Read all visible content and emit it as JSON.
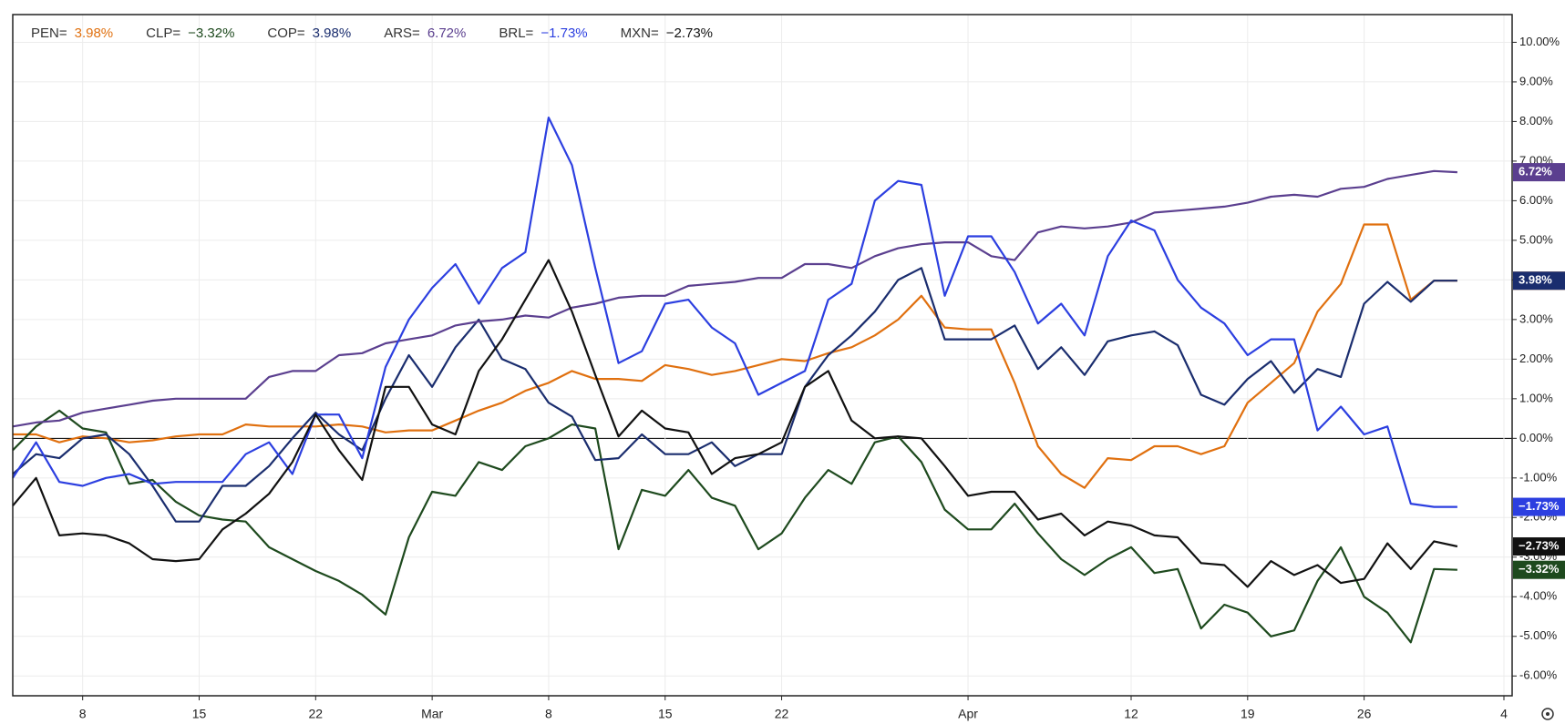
{
  "chart_data": {
    "type": "line",
    "categories": [
      null,
      null,
      null,
      "8",
      null,
      null,
      null,
      null,
      "15",
      null,
      null,
      null,
      null,
      "22",
      null,
      null,
      null,
      null,
      "Mar",
      null,
      null,
      null,
      null,
      "8",
      null,
      null,
      null,
      null,
      "15",
      null,
      null,
      null,
      null,
      "22",
      null,
      null,
      null,
      null,
      null,
      null,
      null,
      "Apr",
      null,
      null,
      null,
      null,
      null,
      null,
      "12",
      null,
      null,
      null,
      null,
      "19",
      null,
      null,
      null,
      null,
      "26",
      null,
      null,
      null,
      null,
      null,
      "4"
    ],
    "ylim": [
      -6.5,
      10.7
    ],
    "yticks": [
      {
        "value": 10,
        "label": "10.00%"
      },
      {
        "value": 9,
        "label": "9.00%"
      },
      {
        "value": 8,
        "label": "8.00%"
      },
      {
        "value": 7,
        "label": "7.00%"
      },
      {
        "value": 6,
        "label": "6.00%"
      },
      {
        "value": 5,
        "label": "5.00%"
      },
      {
        "value": 4,
        "label": "4.00%"
      },
      {
        "value": 3,
        "label": "3.00%"
      },
      {
        "value": 2,
        "label": "2.00%"
      },
      {
        "value": 1,
        "label": "1.00%"
      },
      {
        "value": 0,
        "label": "0.00%"
      },
      {
        "value": -1,
        "label": "-1.00%"
      },
      {
        "value": -2,
        "label": "-2.00%"
      },
      {
        "value": -3,
        "label": "-3.00%"
      },
      {
        "value": -4,
        "label": "-4.00%"
      },
      {
        "value": -5,
        "label": "-5.00%"
      },
      {
        "value": -6,
        "label": "-6.00%"
      }
    ],
    "grid": true,
    "series": [
      {
        "name": "PEN=",
        "color": "#e0700f",
        "last_label": "3.98%",
        "values": [
          0.1,
          0.1,
          -0.1,
          0.05,
          0.0,
          -0.1,
          -0.05,
          0.05,
          0.1,
          0.1,
          0.35,
          0.3,
          0.3,
          0.3,
          0.35,
          0.3,
          0.15,
          0.2,
          0.2,
          0.45,
          0.7,
          0.9,
          1.2,
          1.4,
          1.7,
          1.5,
          1.5,
          1.45,
          1.85,
          1.75,
          1.6,
          1.7,
          1.85,
          2.0,
          1.95,
          2.15,
          2.3,
          2.6,
          3.0,
          3.6,
          2.8,
          2.75,
          2.75,
          1.4,
          -0.2,
          -0.9,
          -1.25,
          -0.5,
          -0.55,
          -0.2,
          -0.2,
          -0.4,
          -0.2,
          0.9,
          1.4,
          1.9,
          3.2,
          3.9,
          5.4,
          5.4,
          3.5,
          3.98,
          3.98,
          null,
          null
        ]
      },
      {
        "name": "CLP=",
        "color": "#1e4a1e",
        "last_label": "−3.32%",
        "values": [
          -0.3,
          0.3,
          0.7,
          0.25,
          0.15,
          -1.15,
          -1.05,
          -1.6,
          -1.95,
          -2.05,
          -2.1,
          -2.75,
          -3.05,
          -3.35,
          -3.6,
          -3.95,
          -4.45,
          -2.5,
          -1.35,
          -1.45,
          -0.6,
          -0.8,
          -0.2,
          0.0,
          0.35,
          0.25,
          -2.8,
          -1.3,
          -1.45,
          -0.8,
          -1.5,
          -1.7,
          -2.8,
          -2.4,
          -1.5,
          -0.8,
          -1.15,
          -0.1,
          0.05,
          -0.6,
          -1.8,
          -2.3,
          -2.3,
          -1.65,
          -2.4,
          -3.05,
          -3.45,
          -3.05,
          -2.75,
          -3.4,
          -3.3,
          -4.8,
          -4.2,
          -4.4,
          -5.0,
          -4.85,
          -3.6,
          -2.75,
          -4.0,
          -4.4,
          -5.15,
          -3.3,
          -3.32,
          null,
          null
        ]
      },
      {
        "name": "COP=",
        "color": "#1a2d6e",
        "last_label": "3.98%",
        "values": [
          -0.9,
          -0.4,
          -0.5,
          0.0,
          0.1,
          -0.4,
          -1.2,
          -2.1,
          -2.1,
          -1.2,
          -1.2,
          -0.7,
          0.0,
          0.65,
          0.1,
          -0.3,
          1.0,
          2.1,
          1.3,
          2.3,
          3.0,
          2.0,
          1.75,
          0.9,
          0.55,
          -0.55,
          -0.5,
          0.1,
          -0.4,
          -0.4,
          -0.1,
          -0.7,
          -0.4,
          -0.4,
          1.3,
          2.1,
          2.6,
          3.2,
          4.0,
          4.3,
          2.5,
          2.5,
          2.5,
          2.85,
          1.75,
          2.3,
          1.6,
          2.45,
          2.6,
          2.7,
          2.35,
          1.1,
          0.85,
          1.5,
          1.95,
          1.15,
          1.75,
          1.55,
          3.4,
          3.95,
          3.45,
          3.98,
          3.98,
          null,
          null
        ]
      },
      {
        "name": "ARS=",
        "color": "#5b3f8f",
        "last_label": "6.72%",
        "values": [
          0.3,
          0.4,
          0.45,
          0.65,
          0.75,
          0.85,
          0.95,
          1.0,
          1.0,
          1.0,
          1.0,
          1.55,
          1.7,
          1.7,
          2.1,
          2.15,
          2.4,
          2.5,
          2.6,
          2.85,
          2.95,
          3.0,
          3.1,
          3.05,
          3.3,
          3.4,
          3.55,
          3.6,
          3.6,
          3.85,
          3.9,
          3.95,
          4.05,
          4.05,
          4.4,
          4.4,
          4.3,
          4.6,
          4.8,
          4.9,
          4.95,
          4.95,
          4.6,
          4.5,
          5.2,
          5.35,
          5.3,
          5.35,
          5.45,
          5.7,
          5.75,
          5.8,
          5.85,
          5.95,
          6.1,
          6.15,
          6.1,
          6.3,
          6.35,
          6.55,
          6.65,
          6.75,
          6.72,
          null,
          null
        ]
      },
      {
        "name": "BRL=",
        "color": "#2c3fe0",
        "last_label": "−1.73%",
        "values": [
          -1.0,
          -0.1,
          -1.1,
          -1.2,
          -1.0,
          -0.9,
          -1.15,
          -1.1,
          -1.1,
          -1.1,
          -0.4,
          -0.1,
          -0.9,
          0.6,
          0.6,
          -0.5,
          1.8,
          3.0,
          3.8,
          4.4,
          3.4,
          4.3,
          4.7,
          8.1,
          6.9,
          4.3,
          1.9,
          2.2,
          3.4,
          3.5,
          2.8,
          2.4,
          1.1,
          1.4,
          1.7,
          3.5,
          3.9,
          6.0,
          6.5,
          6.4,
          3.6,
          5.1,
          5.1,
          4.2,
          2.9,
          3.4,
          2.6,
          4.6,
          5.5,
          5.25,
          4.0,
          3.3,
          2.9,
          2.1,
          2.5,
          2.5,
          0.2,
          0.8,
          0.1,
          0.3,
          -1.65,
          -1.73,
          -1.73,
          null,
          null
        ]
      },
      {
        "name": "MXN=",
        "color": "#111111",
        "last_label": "−2.73%",
        "values": [
          -1.7,
          -1.0,
          -2.45,
          -2.4,
          -2.45,
          -2.65,
          -3.05,
          -3.1,
          -3.05,
          -2.3,
          -1.9,
          -1.4,
          -0.6,
          0.6,
          -0.3,
          -1.05,
          1.3,
          1.3,
          0.35,
          0.1,
          1.7,
          2.5,
          3.5,
          4.5,
          3.2,
          1.6,
          0.05,
          0.7,
          0.25,
          0.15,
          -0.9,
          -0.5,
          -0.4,
          -0.1,
          1.3,
          1.7,
          0.45,
          0.0,
          0.05,
          0.0,
          -0.7,
          -1.45,
          -1.35,
          -1.35,
          -2.05,
          -1.9,
          -2.45,
          -2.1,
          -2.2,
          -2.45,
          -2.5,
          -3.15,
          -3.2,
          -3.75,
          -3.1,
          -3.45,
          -3.2,
          -3.65,
          -3.55,
          -2.65,
          -3.3,
          -2.6,
          -2.73,
          null,
          null
        ]
      }
    ]
  }
}
